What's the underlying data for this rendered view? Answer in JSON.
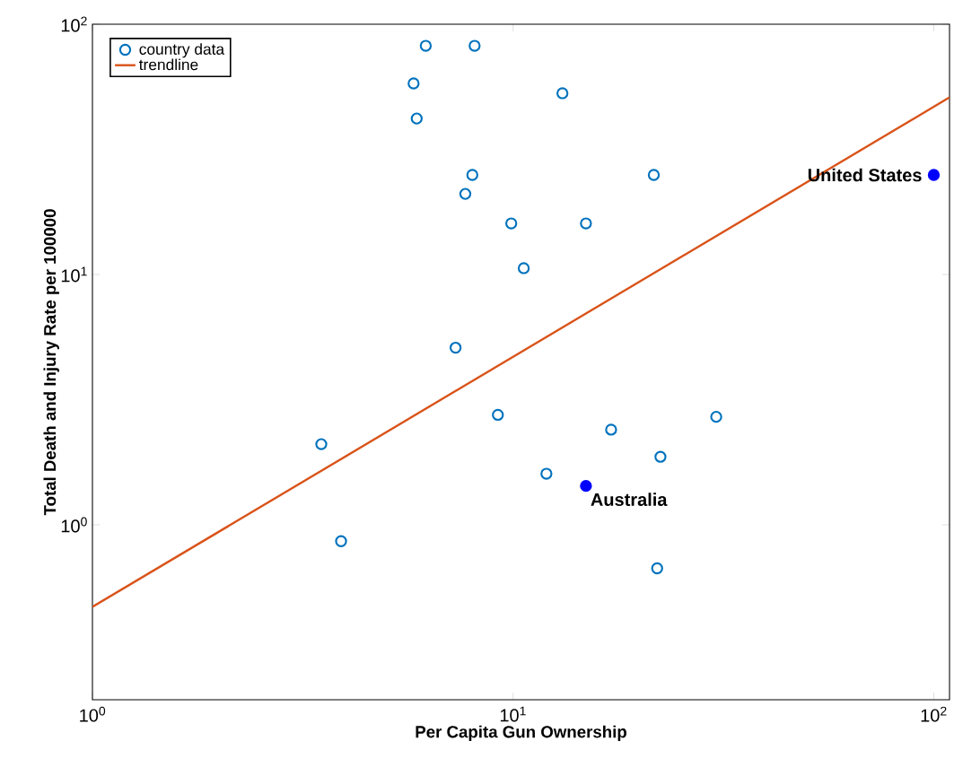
{
  "chart_data": {
    "type": "scatter",
    "xlabel": "Per Capita Gun Ownership",
    "ylabel": "Total Death and Injury Rate per 100000",
    "log": "xy",
    "xlim": [
      1,
      109
    ],
    "ylim": [
      0.2,
      100
    ],
    "xticks": [
      {
        "value": 1,
        "label": "10$^{0}$"
      },
      {
        "value": 10,
        "label": "10$^{1}$"
      },
      {
        "value": 100,
        "label": "10$^{2}$"
      }
    ],
    "yticks": [
      {
        "value": 1,
        "label": "10$^{0}$"
      },
      {
        "value": 10,
        "label": "10$^{1}$"
      },
      {
        "value": 100,
        "label": "10$^{2}$"
      }
    ],
    "grid": false,
    "legend": "top left",
    "series": [
      {
        "name": "country data",
        "marker": "circle",
        "color": "#0072bd",
        "x": [
          3.5,
          3.9,
          6.2,
          8.1,
          5.8,
          5.9,
          13.1,
          8.0,
          7.7,
          9.9,
          14.9,
          21.6,
          10.6,
          7.3,
          9.2,
          12.0,
          17.1,
          22.4,
          30.4,
          22.0
        ],
        "values": [
          2.1,
          0.86,
          82,
          82,
          58,
          42,
          53,
          25,
          21,
          16,
          16,
          25,
          10.6,
          5.1,
          2.75,
          1.6,
          2.4,
          1.87,
          2.7,
          0.67
        ]
      },
      {
        "marker": "circle",
        "color": "#0000ff",
        "x": [
          100,
          14.9
        ],
        "values": [
          25,
          1.43
        ]
      },
      {
        "name": "trendline",
        "type": "line",
        "marker": "none",
        "color": "#d95319",
        "x": [
          1,
          109
        ],
        "values": [
          0.47,
          51
        ]
      }
    ],
    "annotations": [
      {
        "text": "United States",
        "x": 100,
        "y": 25
      },
      {
        "text": "Australia",
        "x": 14.9,
        "y": 1.43
      }
    ]
  }
}
